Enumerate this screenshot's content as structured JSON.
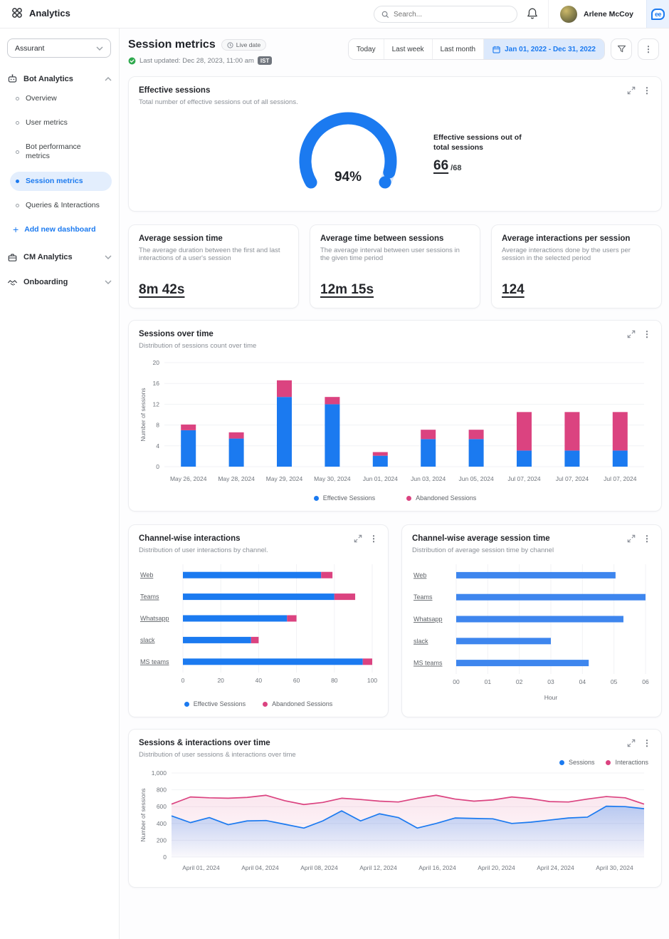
{
  "topbar": {
    "app_title": "Analytics",
    "search_placeholder": "Search...",
    "user_name": "Arlene McCoy",
    "logo_text": "ee"
  },
  "sidebar": {
    "workspace": "Assurant",
    "bot_section": "Bot Analytics",
    "items": [
      {
        "label": "Overview"
      },
      {
        "label": "User metrics"
      },
      {
        "label": "Bot performance metrics"
      },
      {
        "label": "Session metrics"
      },
      {
        "label": "Queries & Interactions"
      }
    ],
    "add_dashboard": "Add new dashboard",
    "cm_section": "CM Analytics",
    "onboarding_section": "Onboarding"
  },
  "header": {
    "title": "Session metrics",
    "live_badge": "Live date",
    "last_updated": "Last updated: Dec 28, 2023, 11:00 am",
    "timezone": "IST",
    "filter_today": "Today",
    "filter_last_week": "Last week",
    "filter_last_month": "Last month",
    "date_range": "Jan 01, 2022 - Dec 31, 2022"
  },
  "metric_cards": [
    {
      "title": "Average session time",
      "subtitle": "The average duration between the first and last interactions of a user's session",
      "value": "8m 42s"
    },
    {
      "title": "Average time between sessions",
      "subtitle": "The average interval between user sessions in the given time period",
      "value": "12m 15s"
    },
    {
      "title": "Average interactions per session",
      "subtitle": "Average interactions done by the users per session in the selected period",
      "value": "124"
    }
  ],
  "colors": {
    "accent_blue": "#1B7AF0",
    "accent_pink": "#DB4380",
    "gauge_track": "#D9E8FC",
    "grid_line": "#F1F2F5"
  },
  "chart_data": [
    {
      "id": "effective-gauge",
      "type": "gauge",
      "title": "Effective sessions",
      "subtitle": "Total number of effective sessions out of all sessions.",
      "percent": 94,
      "center_label": "94%",
      "side_label": "Effective sessions out of total sessions",
      "value": "66",
      "total_suffix": "/68",
      "color": "#1B7AF0",
      "track_color": "#D9E8FC"
    },
    {
      "id": "sessions-over-time",
      "type": "bar",
      "stacked": true,
      "title": "Sessions over time",
      "subtitle": "Distribution of sessions count over time",
      "categories": [
        "May 26, 2024",
        "May 28, 2024",
        "May 29, 2024",
        "May 30, 2024",
        "Jun 01, 2024",
        "Jun 03, 2024",
        "Jun 05, 2024",
        "Jul 07, 2024",
        "Jul 07, 2024",
        "Jul 07, 2024"
      ],
      "series": [
        {
          "name": "Effective Sessions",
          "color": "#1B7AF0",
          "values": [
            7,
            5.4,
            13.4,
            12,
            2.1,
            5.3,
            5.3,
            3.1,
            3.1,
            3.1
          ]
        },
        {
          "name": "Abandoned Sessions",
          "color": "#DB4380",
          "values": [
            1.1,
            1.2,
            3.2,
            1.4,
            0.7,
            1.8,
            1.8,
            7.4,
            7.4,
            7.4
          ]
        }
      ],
      "ylabel": "Number of sessions",
      "ylim": [
        0,
        20
      ],
      "yticks": [
        0,
        4,
        8,
        12,
        16,
        20
      ],
      "legend_position": "bottom",
      "grid": true
    },
    {
      "id": "channel-interactions",
      "type": "bar-horizontal",
      "stacked": true,
      "title": "Channel-wise interactions",
      "subtitle": "Distribution of user interactions by channel.",
      "categories": [
        "Web",
        "Teams",
        "Whatsapp",
        "slack",
        "MS teams"
      ],
      "series": [
        {
          "name": "Effective Sessions",
          "color": "#1B7AF0",
          "values": [
            73,
            80,
            55,
            36,
            95
          ]
        },
        {
          "name": "Abandoned Sessions",
          "color": "#DB4380",
          "values": [
            6,
            11,
            5,
            4,
            5
          ]
        }
      ],
      "xlim": [
        0,
        100
      ],
      "xticks": [
        0,
        20,
        40,
        60,
        80,
        100
      ],
      "xtick_labels": [
        "0",
        "20",
        "40",
        "60",
        "80",
        "100"
      ],
      "xlabel": "",
      "legend_position": "bottom",
      "grid": true
    },
    {
      "id": "channel-session-time",
      "type": "bar-horizontal",
      "stacked": false,
      "title": "Channel-wise average session time",
      "subtitle": "Distribution of average session time by channel",
      "categories": [
        "Web",
        "Teams",
        "Whatsapp",
        "slack",
        "MS teams"
      ],
      "series": [
        {
          "name": "Average session time",
          "color": "#3E86EE",
          "values": [
            5.05,
            6,
            5.3,
            3,
            4.2
          ]
        }
      ],
      "xlim": [
        0,
        6
      ],
      "xticks": [
        0,
        1,
        2,
        3,
        4,
        5,
        6
      ],
      "xtick_labels": [
        "00",
        "01",
        "02",
        "03",
        "04",
        "05",
        "06"
      ],
      "xlabel": "Hour",
      "legend_position": "none",
      "grid": true
    },
    {
      "id": "sessions-interactions-over-time",
      "type": "line",
      "title": "Sessions & interactions over time",
      "subtitle": "Distribution of user sessions & interactions over time",
      "x_labels": [
        "April 01, 2024",
        "April 04, 2024",
        "April 08, 2024",
        "April 12, 2024",
        "April 16, 2024",
        "April 20, 2024",
        "April 24, 2024",
        "April 30, 2024"
      ],
      "series": [
        {
          "name": "Sessions",
          "color": "#1B7AF0",
          "values": [
            490,
            410,
            470,
            385,
            430,
            435,
            390,
            345,
            430,
            550,
            430,
            515,
            470,
            345,
            400,
            465,
            460,
            455,
            400,
            415,
            440,
            465,
            475,
            605,
            600,
            575
          ]
        },
        {
          "name": "Interactions",
          "color": "#DB4380",
          "values": [
            630,
            715,
            705,
            700,
            710,
            735,
            670,
            625,
            650,
            700,
            685,
            665,
            655,
            700,
            735,
            690,
            665,
            680,
            715,
            695,
            660,
            655,
            690,
            720,
            705,
            630
          ]
        }
      ],
      "ylabel": "Number of sessions",
      "ylim": [
        0,
        1000
      ],
      "yticks": [
        0,
        200,
        400,
        600,
        800,
        1000
      ],
      "ytick_labels": [
        "0",
        "200",
        "400",
        "600",
        "800",
        "1,000"
      ],
      "legend_position": "top-right",
      "grid": true
    }
  ]
}
